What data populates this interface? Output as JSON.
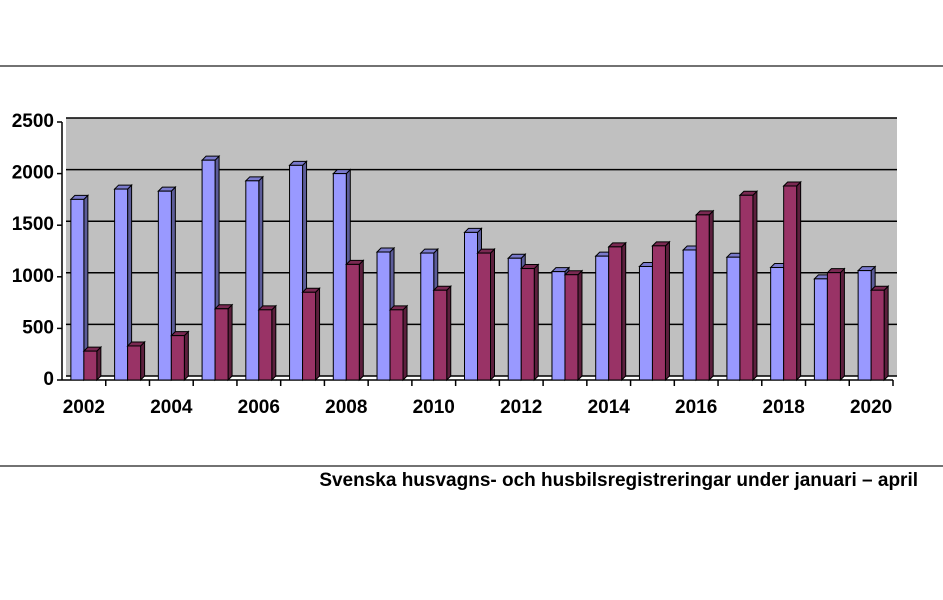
{
  "chart_data": {
    "type": "bar",
    "title": "Svenska husvagns- och husbilsregistreringar under januari – april",
    "categories": [
      "2002",
      null,
      "2004",
      null,
      "2006",
      null,
      "2008",
      null,
      "2010",
      null,
      "2012",
      null,
      "2014",
      null,
      "2016",
      null,
      "2018",
      null,
      "2020"
    ],
    "series": [
      {
        "color": "#9999ff",
        "values": [
          1750,
          1850,
          1830,
          2130,
          1930,
          2080,
          2000,
          1240,
          1230,
          1430,
          1180,
          1050,
          1200,
          1100,
          1260,
          1190,
          1090,
          980,
          1060
        ]
      },
      {
        "color": "#993366",
        "values": [
          280,
          330,
          430,
          690,
          680,
          850,
          1120,
          680,
          870,
          1230,
          1080,
          1020,
          1290,
          1300,
          1600,
          1790,
          1880,
          1040,
          870
        ]
      }
    ],
    "ylim": [
      0,
      2500
    ],
    "yticks": [
      0,
      500,
      1000,
      1500,
      2000,
      2500
    ],
    "grid": true
  }
}
